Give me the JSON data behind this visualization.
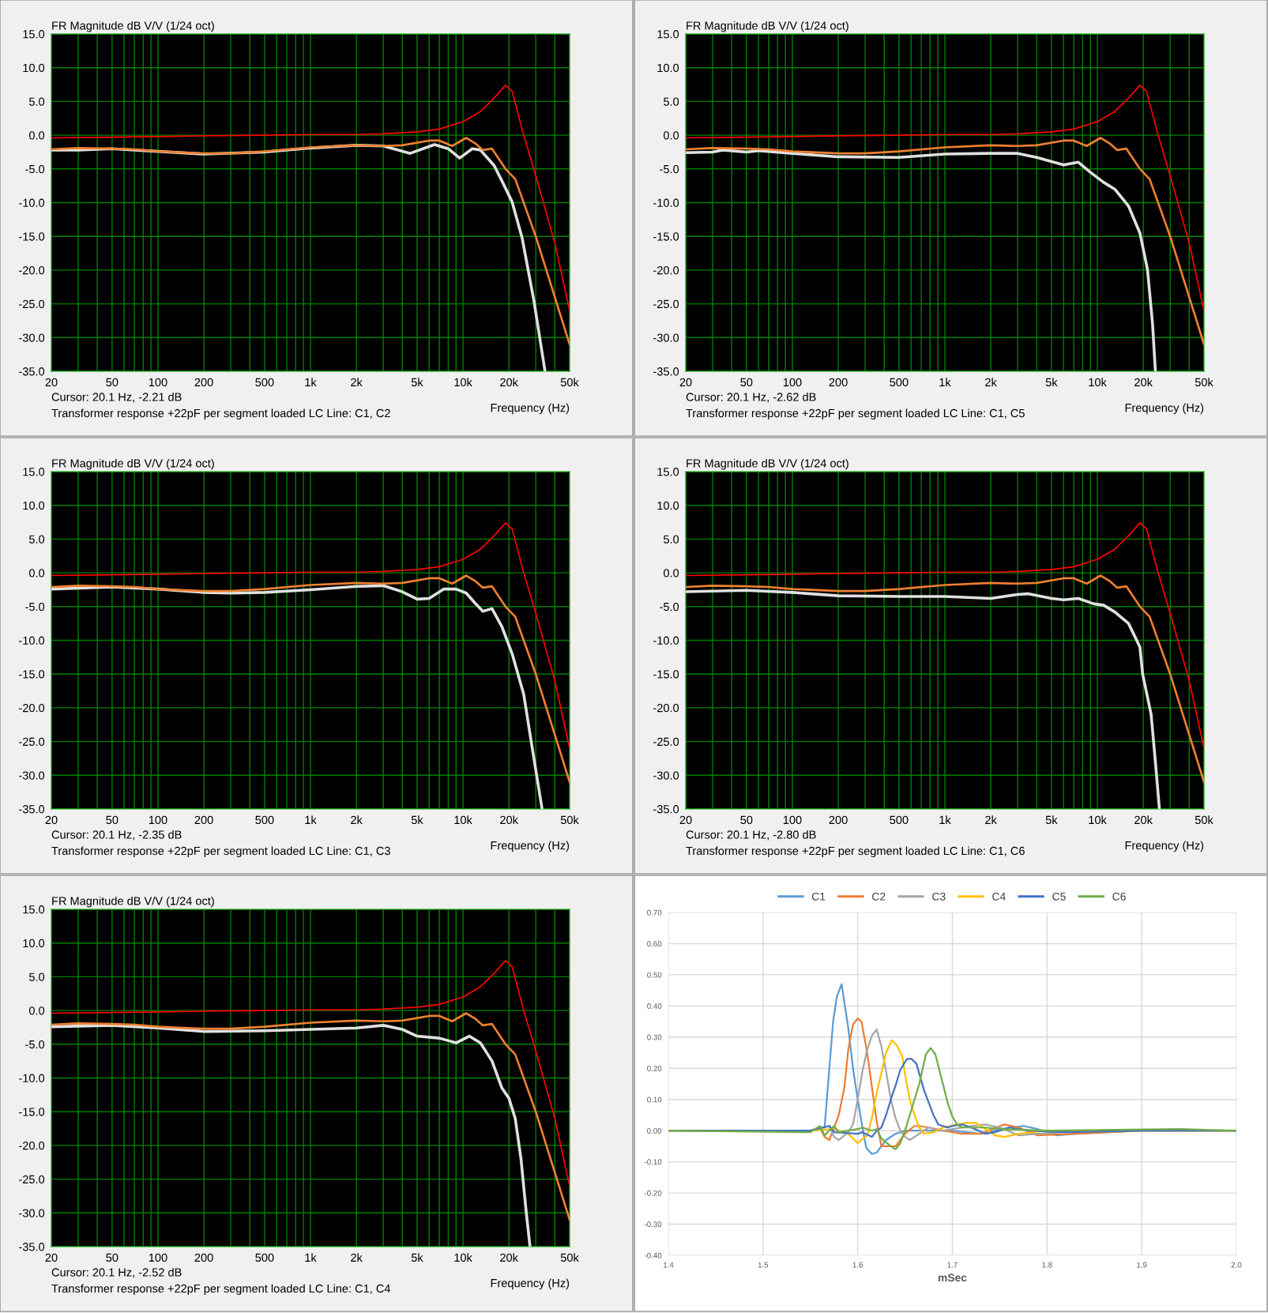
{
  "chart_data": [
    {
      "type": "line",
      "title": "FR Magnitude dB V/V (1/24 oct)",
      "xlabel": "Frequency (Hz)",
      "annotations": [
        "Cursor: 20.1 Hz, -2.21 dB",
        "Transformer response +22pF per segment loaded LC Line: C1, C2"
      ],
      "log": "x",
      "grid": true,
      "xlim": [
        20,
        50000
      ],
      "ylim": [
        -35,
        15
      ],
      "xticks": [
        20,
        {
          "value": 30,
          "label": null
        },
        {
          "value": 40,
          "label": null
        },
        50,
        {
          "value": 60,
          "label": null
        },
        {
          "value": 70,
          "label": null
        },
        {
          "value": 80,
          "label": null
        },
        {
          "value": 90,
          "label": null
        },
        100,
        200,
        {
          "value": 300,
          "label": null
        },
        {
          "value": 400,
          "label": null
        },
        500,
        {
          "value": 600,
          "label": null
        },
        {
          "value": 700,
          "label": null
        },
        {
          "value": 800,
          "label": null
        },
        {
          "value": 900,
          "label": null
        },
        {
          "value": 1000,
          "label": "1k"
        },
        {
          "value": 2000,
          "label": "2k"
        },
        {
          "value": 3000,
          "label": null
        },
        {
          "value": 4000,
          "label": null
        },
        {
          "value": 5000,
          "label": "5k"
        },
        {
          "value": 6000,
          "label": null
        },
        {
          "value": 7000,
          "label": null
        },
        {
          "value": 8000,
          "label": null
        },
        {
          "value": 9000,
          "label": null
        },
        {
          "value": 10000,
          "label": "10k"
        },
        {
          "value": 20000,
          "label": "20k"
        },
        {
          "value": 30000,
          "label": null
        },
        {
          "value": 40000,
          "label": null
        },
        {
          "value": 50000,
          "label": "50k"
        }
      ],
      "yticks": [
        {
          "value": 15,
          "label": "15.0"
        },
        {
          "value": 10,
          "label": "10.0"
        },
        {
          "value": 5,
          "label": "5.0"
        },
        {
          "value": 0,
          "label": "0.0"
        },
        {
          "value": -5,
          "label": "-5.0"
        },
        {
          "value": -10,
          "label": "-10.0"
        },
        {
          "value": -15,
          "label": "-15.0"
        },
        {
          "value": -20,
          "label": "-20.0"
        },
        {
          "value": -25,
          "label": "-25.0"
        },
        {
          "value": -30,
          "label": "-30.0"
        },
        {
          "value": -35,
          "label": "-35.0"
        }
      ],
      "series": [
        {
          "color": "#ff0000",
          "x": [
            20,
            50,
            100,
            200,
            500,
            1000,
            2000,
            3000,
            5000,
            7000,
            10000,
            13000,
            16000,
            19000,
            21000,
            25000,
            30000,
            40000,
            50000
          ],
          "values": [
            -0.4,
            -0.3,
            -0.2,
            -0.1,
            0,
            0.1,
            0.1,
            0.2,
            0.5,
            0.9,
            2.0,
            3.5,
            5.5,
            7.4,
            6.5,
            0,
            -6,
            -16,
            -26
          ]
        },
        {
          "color": "#f08030",
          "x": [
            20,
            30,
            50,
            70,
            100,
            200,
            300,
            500,
            1000,
            2000,
            3000,
            4000,
            6000,
            7000,
            8500,
            10500,
            12000,
            13500,
            15500,
            19000,
            22000,
            30000,
            40000,
            50000
          ],
          "values": [
            -2.1,
            -1.9,
            -2.0,
            -2.1,
            -2.4,
            -2.7,
            -2.7,
            -2.4,
            -1.8,
            -1.5,
            -1.6,
            -1.5,
            -0.8,
            -0.8,
            -1.6,
            -0.4,
            -1.2,
            -2.2,
            -2.0,
            -5.0,
            -6.5,
            -15,
            -24,
            -31
          ]
        },
        {
          "color": "#e0e0e0",
          "x": [
            20,
            30,
            50,
            100,
            200,
            500,
            1000,
            2000,
            3000,
            4500,
            6500,
            8000,
            9500,
            11500,
            13000,
            16000,
            18200,
            21000,
            24400,
            29200,
            34500
          ],
          "values": [
            -2.2,
            -2.2,
            -2.0,
            -2.4,
            -2.8,
            -2.5,
            -1.9,
            -1.5,
            -1.6,
            -2.7,
            -1.4,
            -2.0,
            -3.4,
            -2.0,
            -2.2,
            -4.5,
            -7.0,
            -9.9,
            -15.2,
            -24.6,
            -35
          ]
        }
      ]
    },
    {
      "type": "line",
      "title": "FR Magnitude dB V/V (1/24 oct)",
      "xlabel": "Frequency (Hz)",
      "annotations": [
        "Cursor: 20.1 Hz, -2.62 dB",
        "Transformer response +22pF per segment loaded LC Line: C1, C5"
      ],
      "log": "x",
      "grid": true,
      "xlim": [
        20,
        50000
      ],
      "ylim": [
        -35,
        15
      ],
      "xticks": [
        20,
        {
          "value": 30,
          "label": null
        },
        {
          "value": 40,
          "label": null
        },
        50,
        {
          "value": 60,
          "label": null
        },
        {
          "value": 70,
          "label": null
        },
        {
          "value": 80,
          "label": null
        },
        {
          "value": 90,
          "label": null
        },
        100,
        200,
        {
          "value": 300,
          "label": null
        },
        {
          "value": 400,
          "label": null
        },
        500,
        {
          "value": 600,
          "label": null
        },
        {
          "value": 700,
          "label": null
        },
        {
          "value": 800,
          "label": null
        },
        {
          "value": 900,
          "label": null
        },
        {
          "value": 1000,
          "label": "1k"
        },
        {
          "value": 2000,
          "label": "2k"
        },
        {
          "value": 3000,
          "label": null
        },
        {
          "value": 4000,
          "label": null
        },
        {
          "value": 5000,
          "label": "5k"
        },
        {
          "value": 6000,
          "label": null
        },
        {
          "value": 7000,
          "label": null
        },
        {
          "value": 8000,
          "label": null
        },
        {
          "value": 9000,
          "label": null
        },
        {
          "value": 10000,
          "label": "10k"
        },
        {
          "value": 20000,
          "label": "20k"
        },
        {
          "value": 30000,
          "label": null
        },
        {
          "value": 40000,
          "label": null
        },
        {
          "value": 50000,
          "label": "50k"
        }
      ],
      "yticks": [
        {
          "value": 15,
          "label": "15.0"
        },
        {
          "value": 10,
          "label": "10.0"
        },
        {
          "value": 5,
          "label": "5.0"
        },
        {
          "value": 0,
          "label": "0.0"
        },
        {
          "value": -5,
          "label": "-5.0"
        },
        {
          "value": -10,
          "label": "-10.0"
        },
        {
          "value": -15,
          "label": "-15.0"
        },
        {
          "value": -20,
          "label": "-20.0"
        },
        {
          "value": -25,
          "label": "-25.0"
        },
        {
          "value": -30,
          "label": "-30.0"
        },
        {
          "value": -35,
          "label": "-35.0"
        }
      ],
      "series": [
        {
          "color": "#ff0000",
          "x": [
            20,
            50,
            100,
            200,
            500,
            1000,
            2000,
            3000,
            5000,
            7000,
            10000,
            13000,
            16000,
            19000,
            21000,
            25000,
            30000,
            40000,
            50000
          ],
          "values": [
            -0.4,
            -0.3,
            -0.2,
            -0.1,
            0,
            0.1,
            0.1,
            0.2,
            0.5,
            0.9,
            2.0,
            3.5,
            5.5,
            7.4,
            6.5,
            0,
            -6,
            -16,
            -26
          ]
        },
        {
          "color": "#f08030",
          "x": [
            20,
            30,
            50,
            70,
            100,
            200,
            300,
            500,
            1000,
            2000,
            3000,
            4000,
            6000,
            7000,
            8500,
            10500,
            12000,
            13500,
            15500,
            19000,
            22000,
            30000,
            40000,
            50000
          ],
          "values": [
            -2.1,
            -1.9,
            -2.0,
            -2.1,
            -2.4,
            -2.7,
            -2.7,
            -2.4,
            -1.8,
            -1.5,
            -1.6,
            -1.5,
            -0.8,
            -0.8,
            -1.6,
            -0.4,
            -1.2,
            -2.2,
            -2.0,
            -5.0,
            -6.5,
            -15,
            -24,
            -31
          ]
        },
        {
          "color": "#e0e0e0",
          "x": [
            20,
            30,
            35,
            50,
            60,
            100,
            200,
            500,
            1000,
            2000,
            3000,
            4000,
            6000,
            7500,
            9000,
            11000,
            13000,
            16000,
            19000,
            21300,
            23000,
            24000
          ],
          "values": [
            -2.6,
            -2.5,
            -2.2,
            -2.5,
            -2.3,
            -2.7,
            -3.2,
            -3.3,
            -2.8,
            -2.7,
            -2.7,
            -3.3,
            -4.4,
            -4.0,
            -5.5,
            -7.0,
            -8.0,
            -10.5,
            -14.5,
            -19.9,
            -28,
            -35
          ]
        }
      ]
    },
    {
      "type": "line",
      "title": "FR Magnitude dB V/V (1/24 oct)",
      "xlabel": "Frequency (Hz)",
      "annotations": [
        "Cursor: 20.1 Hz, -2.35 dB",
        "Transformer response +22pF per segment loaded LC Line: C1, C3"
      ],
      "log": "x",
      "grid": true,
      "xlim": [
        20,
        50000
      ],
      "ylim": [
        -35,
        15
      ],
      "xticks": [
        20,
        {
          "value": 30,
          "label": null
        },
        {
          "value": 40,
          "label": null
        },
        50,
        {
          "value": 60,
          "label": null
        },
        {
          "value": 70,
          "label": null
        },
        {
          "value": 80,
          "label": null
        },
        {
          "value": 90,
          "label": null
        },
        100,
        200,
        {
          "value": 300,
          "label": null
        },
        {
          "value": 400,
          "label": null
        },
        500,
        {
          "value": 600,
          "label": null
        },
        {
          "value": 700,
          "label": null
        },
        {
          "value": 800,
          "label": null
        },
        {
          "value": 900,
          "label": null
        },
        {
          "value": 1000,
          "label": "1k"
        },
        {
          "value": 2000,
          "label": "2k"
        },
        {
          "value": 3000,
          "label": null
        },
        {
          "value": 4000,
          "label": null
        },
        {
          "value": 5000,
          "label": "5k"
        },
        {
          "value": 6000,
          "label": null
        },
        {
          "value": 7000,
          "label": null
        },
        {
          "value": 8000,
          "label": null
        },
        {
          "value": 9000,
          "label": null
        },
        {
          "value": 10000,
          "label": "10k"
        },
        {
          "value": 20000,
          "label": "20k"
        },
        {
          "value": 30000,
          "label": null
        },
        {
          "value": 40000,
          "label": null
        },
        {
          "value": 50000,
          "label": "50k"
        }
      ],
      "yticks": [
        {
          "value": 15,
          "label": "15.0"
        },
        {
          "value": 10,
          "label": "10.0"
        },
        {
          "value": 5,
          "label": "5.0"
        },
        {
          "value": 0,
          "label": "0.0"
        },
        {
          "value": -5,
          "label": "-5.0"
        },
        {
          "value": -10,
          "label": "-10.0"
        },
        {
          "value": -15,
          "label": "-15.0"
        },
        {
          "value": -20,
          "label": "-20.0"
        },
        {
          "value": -25,
          "label": "-25.0"
        },
        {
          "value": -30,
          "label": "-30.0"
        },
        {
          "value": -35,
          "label": "-35.0"
        }
      ],
      "series": [
        {
          "color": "#ff0000",
          "x": [
            20,
            50,
            100,
            200,
            500,
            1000,
            2000,
            3000,
            5000,
            7000,
            10000,
            13000,
            16000,
            19000,
            21000,
            25000,
            30000,
            40000,
            50000
          ],
          "values": [
            -0.4,
            -0.3,
            -0.2,
            -0.1,
            0,
            0.1,
            0.1,
            0.2,
            0.5,
            0.9,
            2.0,
            3.5,
            5.5,
            7.4,
            6.5,
            0,
            -6,
            -16,
            -26
          ]
        },
        {
          "color": "#f08030",
          "x": [
            20,
            30,
            50,
            70,
            100,
            200,
            300,
            500,
            1000,
            2000,
            3000,
            4000,
            6000,
            7000,
            8500,
            10500,
            12000,
            13500,
            15500,
            19000,
            22000,
            30000,
            40000,
            50000
          ],
          "values": [
            -2.1,
            -1.9,
            -2.0,
            -2.1,
            -2.4,
            -2.7,
            -2.7,
            -2.4,
            -1.8,
            -1.5,
            -1.6,
            -1.5,
            -0.8,
            -0.8,
            -1.6,
            -0.4,
            -1.2,
            -2.2,
            -2.0,
            -5.0,
            -6.5,
            -15,
            -24,
            -31
          ]
        },
        {
          "color": "#e0e0e0",
          "x": [
            20,
            50,
            100,
            200,
            300,
            500,
            1000,
            2000,
            3000,
            4000,
            5000,
            6000,
            7500,
            9000,
            10500,
            12000,
            13500,
            15500,
            18000,
            21000,
            25000,
            28000,
            33000
          ],
          "values": [
            -2.4,
            -2.1,
            -2.4,
            -2.9,
            -3.0,
            -2.9,
            -2.5,
            -2.0,
            -1.9,
            -2.8,
            -3.9,
            -3.8,
            -2.4,
            -2.4,
            -3.0,
            -4.5,
            -5.7,
            -5.3,
            -8,
            -12,
            -18,
            -25,
            -35
          ]
        }
      ]
    },
    {
      "type": "line",
      "title": "FR Magnitude dB V/V (1/24 oct)",
      "xlabel": "Frequency (Hz)",
      "annotations": [
        "Cursor: 20.1 Hz, -2.80 dB",
        "Transformer response +22pF per segment loaded LC Line: C1, C6"
      ],
      "log": "x",
      "grid": true,
      "xlim": [
        20,
        50000
      ],
      "ylim": [
        -35,
        15
      ],
      "xticks": [
        20,
        {
          "value": 30,
          "label": null
        },
        {
          "value": 40,
          "label": null
        },
        50,
        {
          "value": 60,
          "label": null
        },
        {
          "value": 70,
          "label": null
        },
        {
          "value": 80,
          "label": null
        },
        {
          "value": 90,
          "label": null
        },
        100,
        200,
        {
          "value": 300,
          "label": null
        },
        {
          "value": 400,
          "label": null
        },
        500,
        {
          "value": 600,
          "label": null
        },
        {
          "value": 700,
          "label": null
        },
        {
          "value": 800,
          "label": null
        },
        {
          "value": 900,
          "label": null
        },
        {
          "value": 1000,
          "label": "1k"
        },
        {
          "value": 2000,
          "label": "2k"
        },
        {
          "value": 3000,
          "label": null
        },
        {
          "value": 4000,
          "label": null
        },
        {
          "value": 5000,
          "label": "5k"
        },
        {
          "value": 6000,
          "label": null
        },
        {
          "value": 7000,
          "label": null
        },
        {
          "value": 8000,
          "label": null
        },
        {
          "value": 9000,
          "label": null
        },
        {
          "value": 10000,
          "label": "10k"
        },
        {
          "value": 20000,
          "label": "20k"
        },
        {
          "value": 30000,
          "label": null
        },
        {
          "value": 40000,
          "label": null
        },
        {
          "value": 50000,
          "label": "50k"
        }
      ],
      "yticks": [
        {
          "value": 15,
          "label": "15.0"
        },
        {
          "value": 10,
          "label": "10.0"
        },
        {
          "value": 5,
          "label": "5.0"
        },
        {
          "value": 0,
          "label": "0.0"
        },
        {
          "value": -5,
          "label": "-5.0"
        },
        {
          "value": -10,
          "label": "-10.0"
        },
        {
          "value": -15,
          "label": "-15.0"
        },
        {
          "value": -20,
          "label": "-20.0"
        },
        {
          "value": -25,
          "label": "-25.0"
        },
        {
          "value": -30,
          "label": "-30.0"
        },
        {
          "value": -35,
          "label": "-35.0"
        }
      ],
      "series": [
        {
          "color": "#ff0000",
          "x": [
            20,
            50,
            100,
            200,
            500,
            1000,
            2000,
            3000,
            5000,
            7000,
            10000,
            13000,
            16000,
            19000,
            21000,
            25000,
            30000,
            40000,
            50000
          ],
          "values": [
            -0.4,
            -0.3,
            -0.2,
            -0.1,
            0,
            0.1,
            0.1,
            0.2,
            0.5,
            0.9,
            2.0,
            3.5,
            5.5,
            7.4,
            6.5,
            0,
            -6,
            -16,
            -26
          ]
        },
        {
          "color": "#f08030",
          "x": [
            20,
            30,
            50,
            70,
            100,
            200,
            300,
            500,
            1000,
            2000,
            3000,
            4000,
            6000,
            7000,
            8500,
            10500,
            12000,
            13500,
            15500,
            19000,
            22000,
            30000,
            40000,
            50000
          ],
          "values": [
            -2.1,
            -1.9,
            -2.0,
            -2.1,
            -2.4,
            -2.7,
            -2.7,
            -2.4,
            -1.8,
            -1.5,
            -1.6,
            -1.5,
            -0.8,
            -0.8,
            -1.6,
            -0.4,
            -1.2,
            -2.2,
            -2.0,
            -5.0,
            -6.5,
            -15,
            -24,
            -31
          ]
        },
        {
          "color": "#e0e0e0",
          "x": [
            20,
            50,
            100,
            200,
            500,
            1000,
            2000,
            3000,
            3500,
            5000,
            6000,
            7500,
            9500,
            11000,
            13000,
            16000,
            19000,
            19800,
            22500,
            24000,
            25500
          ],
          "values": [
            -2.8,
            -2.6,
            -2.9,
            -3.4,
            -3.5,
            -3.5,
            -3.8,
            -3.2,
            -3.1,
            -3.8,
            -4.0,
            -3.8,
            -4.6,
            -4.8,
            -5.8,
            -7.5,
            -11,
            -15.0,
            -21,
            -28,
            -35
          ]
        }
      ]
    },
    {
      "type": "line",
      "title": "FR Magnitude dB V/V (1/24 oct)",
      "xlabel": "Frequency (Hz)",
      "annotations": [
        "Cursor: 20.1 Hz, -2.52 dB",
        "Transformer response +22pF per segment loaded LC Line: C1, C4"
      ],
      "log": "x",
      "grid": true,
      "xlim": [
        20,
        50000
      ],
      "ylim": [
        -35,
        15
      ],
      "xticks": [
        20,
        {
          "value": 30,
          "label": null
        },
        {
          "value": 40,
          "label": null
        },
        50,
        {
          "value": 60,
          "label": null
        },
        {
          "value": 70,
          "label": null
        },
        {
          "value": 80,
          "label": null
        },
        {
          "value": 90,
          "label": null
        },
        100,
        200,
        {
          "value": 300,
          "label": null
        },
        {
          "value": 400,
          "label": null
        },
        500,
        {
          "value": 600,
          "label": null
        },
        {
          "value": 700,
          "label": null
        },
        {
          "value": 800,
          "label": null
        },
        {
          "value": 900,
          "label": null
        },
        {
          "value": 1000,
          "label": "1k"
        },
        {
          "value": 2000,
          "label": "2k"
        },
        {
          "value": 3000,
          "label": null
        },
        {
          "value": 4000,
          "label": null
        },
        {
          "value": 5000,
          "label": "5k"
        },
        {
          "value": 6000,
          "label": null
        },
        {
          "value": 7000,
          "label": null
        },
        {
          "value": 8000,
          "label": null
        },
        {
          "value": 9000,
          "label": null
        },
        {
          "value": 10000,
          "label": "10k"
        },
        {
          "value": 20000,
          "label": "20k"
        },
        {
          "value": 30000,
          "label": null
        },
        {
          "value": 40000,
          "label": null
        },
        {
          "value": 50000,
          "label": "50k"
        }
      ],
      "yticks": [
        {
          "value": 15,
          "label": "15.0"
        },
        {
          "value": 10,
          "label": "10.0"
        },
        {
          "value": 5,
          "label": "5.0"
        },
        {
          "value": 0,
          "label": "0.0"
        },
        {
          "value": -5,
          "label": "-5.0"
        },
        {
          "value": -10,
          "label": "-10.0"
        },
        {
          "value": -15,
          "label": "-15.0"
        },
        {
          "value": -20,
          "label": "-20.0"
        },
        {
          "value": -25,
          "label": "-25.0"
        },
        {
          "value": -30,
          "label": "-30.0"
        },
        {
          "value": -35,
          "label": "-35.0"
        }
      ],
      "series": [
        {
          "color": "#ff0000",
          "x": [
            20,
            50,
            100,
            200,
            500,
            1000,
            2000,
            3000,
            5000,
            7000,
            10000,
            13000,
            16000,
            19000,
            21000,
            25000,
            30000,
            40000,
            50000
          ],
          "values": [
            -0.4,
            -0.3,
            -0.2,
            -0.1,
            0,
            0.1,
            0.1,
            0.2,
            0.5,
            0.9,
            2.0,
            3.5,
            5.5,
            7.4,
            6.5,
            0,
            -6,
            -16,
            -26
          ]
        },
        {
          "color": "#f08030",
          "x": [
            20,
            30,
            50,
            70,
            100,
            200,
            300,
            500,
            1000,
            2000,
            3000,
            4000,
            6000,
            7000,
            8500,
            10500,
            12000,
            13500,
            15500,
            19000,
            22000,
            30000,
            40000,
            50000
          ],
          "values": [
            -2.1,
            -1.9,
            -2.0,
            -2.1,
            -2.4,
            -2.7,
            -2.7,
            -2.4,
            -1.8,
            -1.5,
            -1.6,
            -1.5,
            -0.8,
            -0.8,
            -1.6,
            -0.4,
            -1.2,
            -2.2,
            -2.0,
            -5.0,
            -6.5,
            -15,
            -24,
            -31
          ]
        },
        {
          "color": "#e0e0e0",
          "x": [
            20,
            50,
            100,
            200,
            500,
            1000,
            2000,
            3000,
            4000,
            5000,
            7000,
            9000,
            11000,
            13000,
            15500,
            18000,
            20000,
            22000,
            24000,
            26000,
            27500
          ],
          "values": [
            -2.4,
            -2.2,
            -2.6,
            -3.1,
            -3.0,
            -2.8,
            -2.6,
            -2.2,
            -2.8,
            -3.8,
            -4.1,
            -4.8,
            -3.8,
            -4.8,
            -7.5,
            -11.5,
            -13,
            -16,
            -22,
            -30,
            -35
          ]
        }
      ]
    },
    {
      "type": "line",
      "xlabel": "mSec",
      "grid": true,
      "legend": "top",
      "xlim": [
        1.4,
        2.0
      ],
      "ylim": [
        -0.4,
        0.7
      ],
      "xticks": [
        1.4,
        1.5,
        1.6,
        1.7,
        1.8,
        1.9,
        {
          "value": 2.0,
          "label": "2.0"
        }
      ],
      "yticks": [
        {
          "value": -0.4,
          "label": "-0.40"
        },
        {
          "value": -0.3,
          "label": "-0.30"
        },
        {
          "value": -0.2,
          "label": "-0.20"
        },
        {
          "value": -0.1,
          "label": "-0.10"
        },
        {
          "value": 0,
          "label": "0.00"
        },
        {
          "value": 0.1,
          "label": "0.10"
        },
        {
          "value": 0.2,
          "label": "0.20"
        },
        {
          "value": 0.3,
          "label": "0.30"
        },
        {
          "value": 0.4,
          "label": "0.40"
        },
        {
          "value": 0.5,
          "label": "0.50"
        },
        {
          "value": 0.6,
          "label": "0.60"
        },
        {
          "value": 0.7,
          "label": "0.70"
        }
      ],
      "series": [
        {
          "name": "C1",
          "color": "#5b9bd5",
          "x": [
            1.4,
            1.55,
            1.56,
            1.565,
            1.574,
            1.578,
            1.583,
            1.59,
            1.595,
            1.6,
            1.605,
            1.609,
            1.615,
            1.62,
            1.63,
            1.64,
            1.65,
            1.7,
            1.73,
            1.76,
            1.775,
            1.79,
            1.81,
            1.83,
            1.9,
            2.0
          ],
          "values": [
            0,
            0,
            0.01,
            0.01,
            0.35,
            0.43,
            0.47,
            0.33,
            0.2,
            0.1,
            0.01,
            -0.055,
            -0.075,
            -0.07,
            -0.03,
            -0.01,
            0,
            0,
            -0.01,
            0.01,
            0.015,
            0.005,
            -0.015,
            -0.01,
            0,
            0
          ]
        },
        {
          "name": "C2",
          "color": "#ed7d31",
          "x": [
            1.4,
            1.55,
            1.56,
            1.565,
            1.57,
            1.575,
            1.58,
            1.586,
            1.59,
            1.595,
            1.6,
            1.604,
            1.61,
            1.615,
            1.62,
            1.625,
            1.635,
            1.64,
            1.65,
            1.66,
            1.665,
            1.675,
            1.69,
            1.71,
            1.73,
            1.755,
            1.77,
            1.79,
            1.83,
            1.9,
            2.0
          ],
          "values": [
            0,
            0,
            0.01,
            -0.02,
            -0.03,
            0.01,
            0.05,
            0.14,
            0.26,
            0.34,
            0.36,
            0.35,
            0.25,
            0.14,
            0.03,
            -0.05,
            -0.05,
            -0.05,
            -0.01,
            0.015,
            0.015,
            0.01,
            0,
            -0.01,
            -0.01,
            0.02,
            0.01,
            -0.015,
            -0.01,
            0,
            0
          ]
        },
        {
          "name": "C3",
          "color": "#a5a5a5",
          "x": [
            1.4,
            1.55,
            1.57,
            1.575,
            1.58,
            1.59,
            1.595,
            1.6,
            1.605,
            1.61,
            1.615,
            1.62,
            1.625,
            1.63,
            1.635,
            1.64,
            1.645,
            1.65,
            1.655,
            1.665,
            1.675,
            1.69,
            1.72,
            1.735,
            1.75,
            1.77,
            1.79,
            1.85,
            1.9,
            2.0
          ],
          "values": [
            0,
            0,
            0.015,
            -0.02,
            -0.03,
            -0.005,
            0.02,
            0.1,
            0.19,
            0.26,
            0.305,
            0.325,
            0.27,
            0.19,
            0.1,
            0.04,
            0,
            -0.02,
            -0.03,
            -0.01,
            0.01,
            0,
            0.015,
            0.02,
            0.01,
            -0.015,
            -0.01,
            0,
            0,
            0
          ]
        },
        {
          "name": "C4",
          "color": "#ffc000",
          "x": [
            1.4,
            1.55,
            1.575,
            1.59,
            1.6,
            1.61,
            1.615,
            1.62,
            1.63,
            1.636,
            1.641,
            1.647,
            1.65,
            1.655,
            1.66,
            1.665,
            1.67,
            1.68,
            1.69,
            1.705,
            1.715,
            1.725,
            1.735,
            1.745,
            1.755,
            1.77,
            1.8,
            1.85,
            2.0
          ],
          "values": [
            0,
            0,
            0.005,
            -0.01,
            -0.04,
            -0.015,
            0.04,
            0.12,
            0.25,
            0.29,
            0.275,
            0.24,
            0.18,
            0.1,
            0.05,
            0.01,
            -0.01,
            -0.005,
            0.01,
            0.02,
            0.025,
            0.025,
            0.005,
            -0.015,
            -0.02,
            -0.01,
            0,
            0,
            0
          ]
        },
        {
          "name": "C5",
          "color": "#4472c4",
          "x": [
            1.4,
            1.55,
            1.57,
            1.575,
            1.6,
            1.605,
            1.615,
            1.62,
            1.625,
            1.63,
            1.635,
            1.64,
            1.645,
            1.652,
            1.657,
            1.662,
            1.67,
            1.675,
            1.68,
            1.685,
            1.695,
            1.7,
            1.71,
            1.72,
            1.735,
            1.745,
            1.76,
            1.78,
            1.82,
            1.9,
            2.0
          ],
          "values": [
            0,
            0,
            0.015,
            -0.005,
            -0.01,
            -0.005,
            -0.02,
            0,
            0.01,
            0.05,
            0.1,
            0.145,
            0.195,
            0.23,
            0.23,
            0.215,
            0.13,
            0.09,
            0.05,
            0.02,
            0.01,
            0.015,
            0.02,
            0.01,
            -0.01,
            -0.005,
            0.01,
            0,
            -0.005,
            0,
            0
          ]
        },
        {
          "name": "C6",
          "color": "#70ad47",
          "x": [
            1.4,
            1.55,
            1.56,
            1.565,
            1.575,
            1.58,
            1.6,
            1.605,
            1.615,
            1.62,
            1.625,
            1.635,
            1.64,
            1.645,
            1.65,
            1.655,
            1.665,
            1.672,
            1.677,
            1.682,
            1.69,
            1.695,
            1.7,
            1.705,
            1.71,
            1.72,
            1.735,
            1.75,
            1.8,
            1.94,
            2.0
          ],
          "values": [
            0,
            -0.005,
            0.015,
            -0.015,
            0.015,
            -0.005,
            0.005,
            0.01,
            0,
            0.005,
            -0.025,
            -0.05,
            -0.06,
            -0.04,
            0,
            0.05,
            0.15,
            0.245,
            0.265,
            0.245,
            0.15,
            0.09,
            0.045,
            0.02,
            0.01,
            0.01,
            0.01,
            0.005,
            0,
            0.005,
            0
          ]
        }
      ]
    }
  ]
}
